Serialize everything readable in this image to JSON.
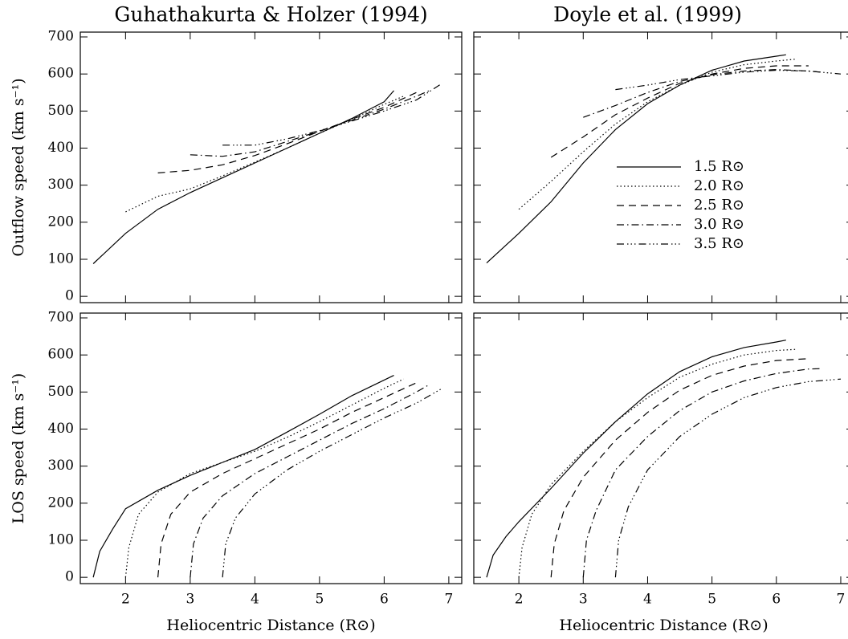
{
  "chart_data": [
    {
      "type": "line",
      "title": "Guhathakurta & Holzer (1994)",
      "ylabel": "Outflow speed (km s⁻¹)",
      "xlim": [
        1.3,
        7.2
      ],
      "ylim": [
        -17,
        713
      ],
      "xticks": [
        2,
        3,
        4,
        5,
        6,
        7
      ],
      "yticks": [
        0,
        100,
        200,
        300,
        400,
        500,
        600,
        700
      ],
      "xtick_labels": false,
      "ytick_labels": true,
      "color": "#000000",
      "series": [
        {
          "style": "solid",
          "x": [
            1.5,
            2,
            2.5,
            3,
            3.5,
            4,
            4.5,
            5,
            5.5,
            6,
            6.15
          ],
          "values": [
            88,
            170,
            235,
            280,
            320,
            360,
            400,
            440,
            480,
            525,
            555
          ]
        },
        {
          "style": "dotted",
          "x": [
            2,
            2.5,
            3,
            3.5,
            4,
            4.5,
            5,
            5.5,
            6,
            6.3
          ],
          "values": [
            228,
            270,
            290,
            325,
            362,
            400,
            440,
            478,
            518,
            540
          ]
        },
        {
          "style": "dashed",
          "x": [
            2.5,
            3,
            3.5,
            4,
            4.5,
            5,
            5.5,
            6,
            6.5
          ],
          "values": [
            333,
            340,
            355,
            380,
            412,
            445,
            478,
            510,
            550
          ]
        },
        {
          "style": "dashdot",
          "x": [
            3,
            3.5,
            4,
            4.5,
            5,
            5.5,
            6,
            6.5,
            6.7
          ],
          "values": [
            382,
            378,
            390,
            418,
            446,
            475,
            505,
            540,
            555
          ]
        },
        {
          "style": "dashdotdotdot",
          "x": [
            3.5,
            4,
            4.5,
            5,
            5.5,
            6,
            6.5,
            6.9
          ],
          "values": [
            408,
            408,
            425,
            447,
            473,
            500,
            530,
            575
          ]
        }
      ]
    },
    {
      "type": "line",
      "title": "Doyle et al. (1999)",
      "xlim": [
        1.3,
        7.2
      ],
      "ylim": [
        -17,
        713
      ],
      "xticks": [
        2,
        3,
        4,
        5,
        6,
        7
      ],
      "yticks": [
        0,
        100,
        200,
        300,
        400,
        500,
        600,
        700
      ],
      "xtick_labels": false,
      "ytick_labels": false,
      "legend": true,
      "color": "#000000",
      "series": [
        {
          "name": "1.5 R⊙",
          "style": "solid",
          "x": [
            1.5,
            2,
            2.5,
            3,
            3.5,
            4,
            4.5,
            5,
            5.5,
            6,
            6.15
          ],
          "values": [
            90,
            170,
            255,
            360,
            450,
            520,
            570,
            610,
            635,
            648,
            652
          ]
        },
        {
          "name": "2.0 R⊙",
          "style": "dotted",
          "x": [
            2,
            2.5,
            3,
            3.5,
            4,
            4.5,
            5,
            5.5,
            6,
            6.3
          ],
          "values": [
            235,
            310,
            390,
            465,
            525,
            570,
            605,
            625,
            635,
            640
          ]
        },
        {
          "name": "2.5 R⊙",
          "style": "dashed",
          "x": [
            2.5,
            3,
            3.5,
            4,
            4.5,
            5,
            5.5,
            6,
            6.5
          ],
          "values": [
            375,
            430,
            490,
            535,
            575,
            600,
            615,
            622,
            622
          ]
        },
        {
          "name": "3.0 R⊙",
          "style": "dashdot",
          "x": [
            3,
            3.5,
            4,
            4.5,
            5,
            5.5,
            6,
            6.5,
            6.7
          ],
          "values": [
            483,
            515,
            550,
            580,
            598,
            608,
            612,
            608,
            605
          ]
        },
        {
          "name": "3.5 R⊙",
          "style": "dashdotdotdot",
          "x": [
            3.5,
            4,
            4.5,
            5,
            5.5,
            6,
            6.5,
            7
          ],
          "values": [
            558,
            570,
            585,
            595,
            605,
            610,
            608,
            600
          ]
        }
      ]
    },
    {
      "type": "line",
      "xlabel": "Heliocentric Distance (R⊙)",
      "ylabel": "LOS speed (km s⁻¹)",
      "xlim": [
        1.3,
        7.2
      ],
      "ylim": [
        -17,
        713
      ],
      "xticks": [
        2,
        3,
        4,
        5,
        6,
        7
      ],
      "yticks": [
        0,
        100,
        200,
        300,
        400,
        500,
        600,
        700
      ],
      "xtick_labels": true,
      "ytick_labels": true,
      "color": "#000000",
      "series": [
        {
          "style": "solid",
          "x": [
            1.5,
            1.6,
            1.8,
            2,
            2.5,
            3,
            3.5,
            4,
            4.5,
            5,
            5.5,
            6.15
          ],
          "values": [
            0,
            70,
            130,
            185,
            235,
            275,
            310,
            345,
            392,
            440,
            490,
            545
          ]
        },
        {
          "style": "dotted",
          "x": [
            2,
            2.05,
            2.2,
            2.5,
            3,
            3.5,
            4,
            4.5,
            5,
            5.5,
            6,
            6.3
          ],
          "values": [
            0,
            80,
            170,
            230,
            280,
            310,
            340,
            378,
            420,
            465,
            510,
            535
          ]
        },
        {
          "style": "dashed",
          "x": [
            2.5,
            2.55,
            2.7,
            3,
            3.5,
            4,
            4.5,
            5,
            5.5,
            6,
            6.5
          ],
          "values": [
            0,
            90,
            170,
            230,
            280,
            320,
            360,
            400,
            445,
            485,
            525
          ]
        },
        {
          "style": "dashdot",
          "x": [
            3,
            3.05,
            3.2,
            3.5,
            4,
            4.5,
            5,
            5.5,
            6,
            6.5,
            6.7
          ],
          "values": [
            0,
            90,
            160,
            220,
            280,
            325,
            370,
            415,
            455,
            500,
            520
          ]
        },
        {
          "style": "dashdotdotdot",
          "x": [
            3.5,
            3.55,
            3.7,
            4,
            4.5,
            5,
            5.5,
            6,
            6.5,
            6.9
          ],
          "values": [
            0,
            90,
            160,
            225,
            290,
            340,
            385,
            430,
            470,
            510
          ]
        }
      ]
    },
    {
      "type": "line",
      "xlabel": "Heliocentric Distance (R⊙)",
      "xlim": [
        1.3,
        7.2
      ],
      "ylim": [
        -17,
        713
      ],
      "xticks": [
        2,
        3,
        4,
        5,
        6,
        7
      ],
      "yticks": [
        0,
        100,
        200,
        300,
        400,
        500,
        600,
        700
      ],
      "xtick_labels": true,
      "ytick_labels": false,
      "color": "#000000",
      "series": [
        {
          "style": "solid",
          "x": [
            1.5,
            1.6,
            1.8,
            2,
            2.5,
            3,
            3.5,
            4,
            4.5,
            5,
            5.5,
            6,
            6.15
          ],
          "values": [
            0,
            60,
            110,
            150,
            240,
            335,
            420,
            495,
            555,
            595,
            620,
            635,
            640
          ]
        },
        {
          "style": "dotted",
          "x": [
            2,
            2.05,
            2.2,
            2.5,
            3,
            3.5,
            4,
            4.5,
            5,
            5.5,
            6,
            6.3
          ],
          "values": [
            0,
            80,
            170,
            250,
            340,
            420,
            485,
            540,
            575,
            600,
            612,
            615
          ]
        },
        {
          "style": "dashed",
          "x": [
            2.5,
            2.55,
            2.7,
            3,
            3.5,
            4,
            4.5,
            5,
            5.5,
            6,
            6.5
          ],
          "values": [
            0,
            90,
            180,
            270,
            370,
            445,
            505,
            545,
            570,
            585,
            590
          ]
        },
        {
          "style": "dashdot",
          "x": [
            3,
            3.05,
            3.2,
            3.5,
            4,
            4.5,
            5,
            5.5,
            6,
            6.5,
            6.7
          ],
          "values": [
            0,
            100,
            180,
            290,
            380,
            450,
            500,
            530,
            550,
            562,
            563
          ]
        },
        {
          "style": "dashdotdotdot",
          "x": [
            3.5,
            3.55,
            3.7,
            4,
            4.5,
            5,
            5.5,
            6,
            6.5,
            7
          ],
          "values": [
            0,
            100,
            190,
            290,
            380,
            440,
            485,
            512,
            528,
            535
          ]
        }
      ]
    }
  ]
}
